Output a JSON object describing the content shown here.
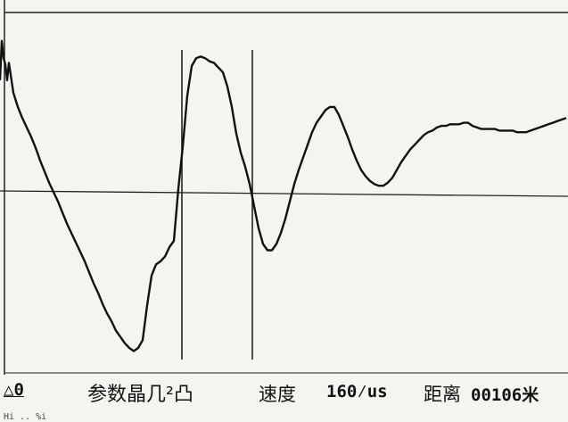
{
  "status": {
    "mode": "△0",
    "params_label": "参数晶几²凸",
    "speed_label": "速度",
    "speed_value": "160⁄us",
    "distance_label": "距离",
    "distance_value": "00106米"
  },
  "footer": {
    "fragment": "Hi   ..   %i"
  },
  "chart_data": {
    "type": "line",
    "title": "",
    "xlabel": "",
    "ylabel": "",
    "grid": false,
    "baseline": 0,
    "x": [
      0,
      2,
      4,
      6,
      8,
      10,
      15,
      20,
      25,
      30,
      35,
      40,
      45,
      50,
      55,
      60,
      65,
      70,
      75,
      80,
      85,
      90,
      95,
      100,
      105,
      110,
      115,
      120,
      125,
      130,
      135,
      140,
      145,
      150,
      155,
      160,
      165,
      170,
      175,
      180,
      185,
      190,
      195,
      200,
      205,
      210,
      215,
      220,
      225,
      230,
      235,
      240,
      245,
      250,
      255,
      260,
      265,
      270,
      275,
      280,
      285,
      290,
      295,
      300,
      305,
      310,
      315,
      320,
      325,
      330,
      335,
      340,
      345,
      350,
      355,
      360,
      365,
      370,
      375,
      380,
      385,
      390,
      395,
      400,
      405,
      410,
      415,
      420,
      425,
      430,
      435,
      440,
      445,
      450,
      455,
      460,
      465,
      470,
      475,
      480,
      485,
      490,
      495,
      500,
      505,
      510,
      515,
      520,
      525,
      530,
      535,
      540,
      545,
      550,
      555,
      560,
      565,
      570,
      575,
      580,
      585,
      590,
      595,
      600,
      605,
      610,
      615,
      620,
      625,
      630,
      635
    ],
    "y": [
      0.72,
      0.97,
      0.86,
      0.82,
      0.72,
      0.83,
      0.64,
      0.55,
      0.48,
      0.42,
      0.36,
      0.29,
      0.21,
      0.14,
      0.07,
      0.01,
      -0.05,
      -0.12,
      -0.19,
      -0.25,
      -0.31,
      -0.37,
      -0.43,
      -0.5,
      -0.57,
      -0.63,
      -0.7,
      -0.76,
      -0.81,
      -0.87,
      -0.91,
      -0.95,
      -0.98,
      -1.0,
      -0.98,
      -0.93,
      -0.71,
      -0.52,
      -0.45,
      -0.43,
      -0.4,
      -0.34,
      -0.3,
      0.03,
      0.3,
      0.62,
      0.81,
      0.86,
      0.87,
      0.86,
      0.84,
      0.83,
      0.8,
      0.77,
      0.68,
      0.55,
      0.38,
      0.26,
      0.17,
      0.06,
      -0.08,
      -0.22,
      -0.32,
      -0.36,
      -0.36,
      -0.32,
      -0.25,
      -0.16,
      -0.05,
      0.06,
      0.15,
      0.23,
      0.31,
      0.39,
      0.45,
      0.49,
      0.53,
      0.55,
      0.55,
      0.5,
      0.43,
      0.36,
      0.28,
      0.21,
      0.15,
      0.11,
      0.08,
      0.06,
      0.05,
      0.05,
      0.07,
      0.1,
      0.15,
      0.2,
      0.24,
      0.28,
      0.31,
      0.34,
      0.37,
      0.39,
      0.4,
      0.42,
      0.43,
      0.43,
      0.44,
      0.44,
      0.44,
      0.45,
      0.45,
      0.43,
      0.42,
      0.41,
      0.41,
      0.41,
      0.41,
      0.4,
      0.4,
      0.4,
      0.4,
      0.39,
      0.39,
      0.39,
      0.4,
      0.41,
      0.42,
      0.43,
      0.44,
      0.45,
      0.46,
      0.47,
      0.48
    ],
    "xlim": [
      0,
      637
    ],
    "ylim": [
      -1.15,
      1.15
    ],
    "cursors": [
      204,
      283
    ]
  }
}
